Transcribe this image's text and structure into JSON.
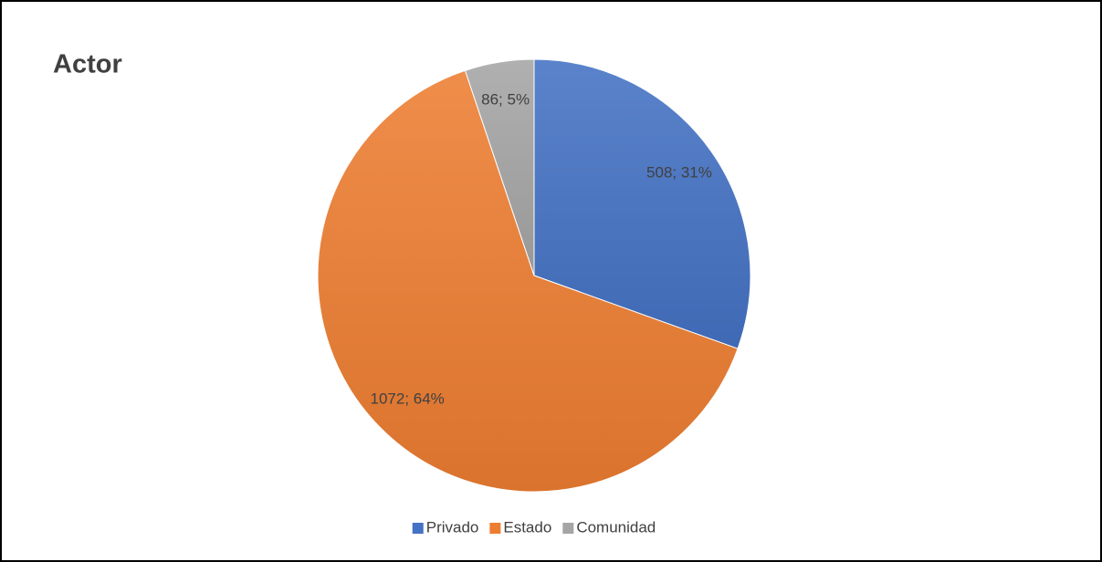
{
  "chart_data": {
    "type": "pie",
    "title": "Actor",
    "categories": [
      "Privado",
      "Estado",
      "Comunidad"
    ],
    "values": [
      508,
      1072,
      86
    ],
    "value_labels": [
      "508; 31%",
      "1072; 64%",
      "86; 5%"
    ],
    "colors": [
      "#4472c4",
      "#ed7d31",
      "#a5a5a5"
    ],
    "legend": "bottom"
  }
}
